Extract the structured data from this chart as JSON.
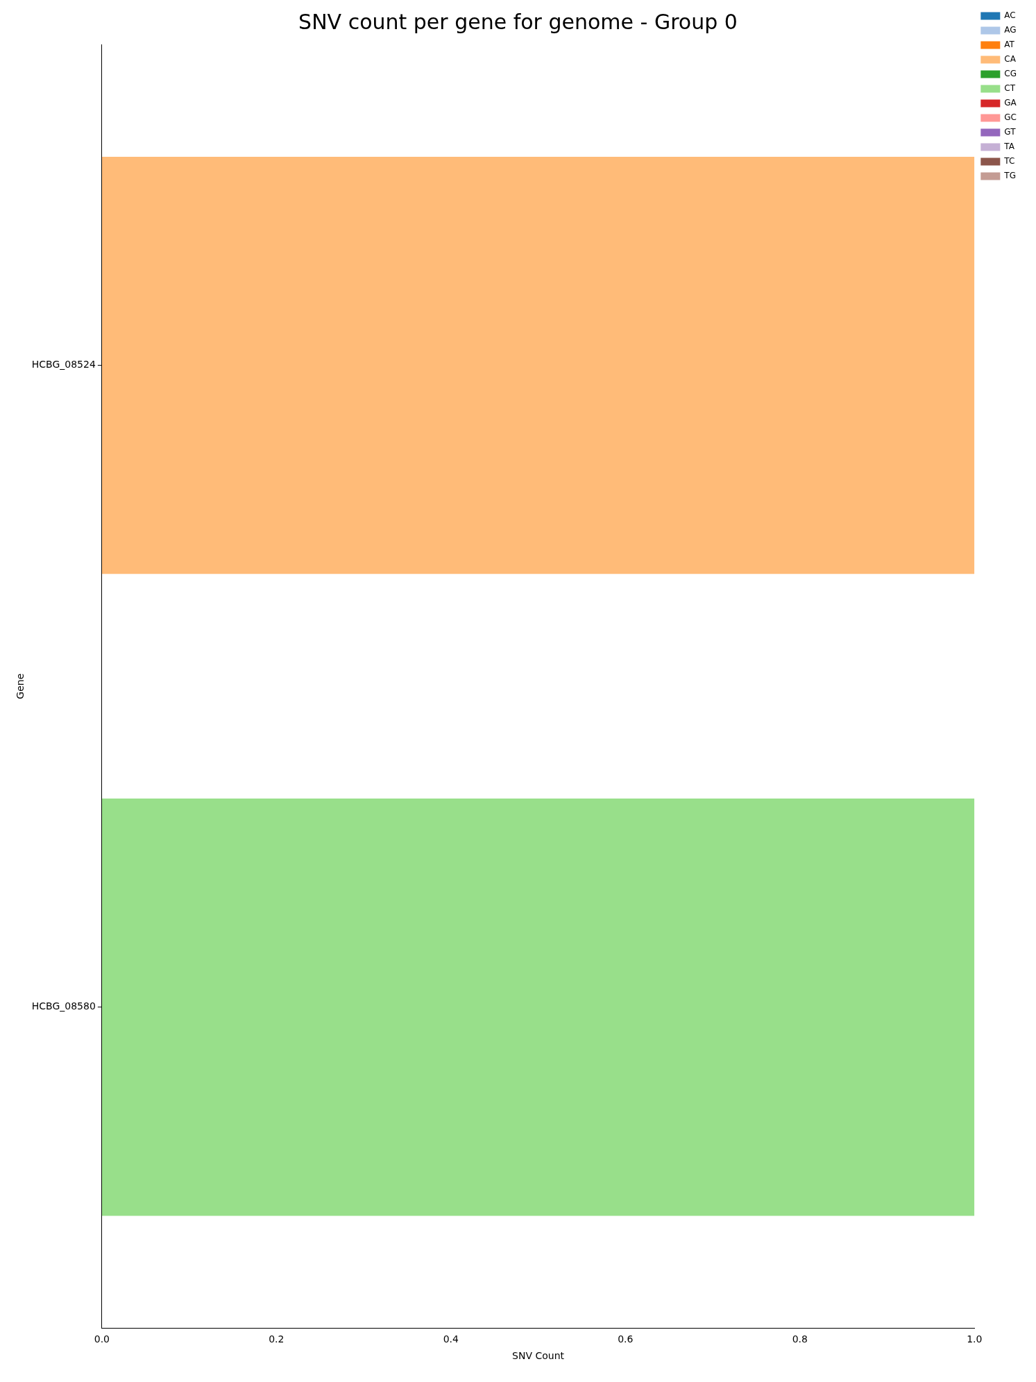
{
  "chart_data": {
    "type": "bar",
    "title": "SNV count per gene for genome - Group 0",
    "xlabel": "SNV Count",
    "ylabel": "Gene",
    "orientation": "horizontal",
    "stacked": true,
    "categories": [
      "HCBG_08524",
      "HCBG_08580"
    ],
    "series": [
      {
        "name": "AC",
        "color": "#1f77b4",
        "values": [
          0,
          0
        ]
      },
      {
        "name": "AG",
        "color": "#aec7e8",
        "values": [
          0,
          0
        ]
      },
      {
        "name": "AT",
        "color": "#ff7f0e",
        "values": [
          0,
          0
        ]
      },
      {
        "name": "CA",
        "color": "#ffbb78",
        "values": [
          1,
          0
        ]
      },
      {
        "name": "CG",
        "color": "#2ca02c",
        "values": [
          0,
          0
        ]
      },
      {
        "name": "CT",
        "color": "#98df8a",
        "values": [
          0,
          1
        ]
      },
      {
        "name": "GA",
        "color": "#d62728",
        "values": [
          0,
          0
        ]
      },
      {
        "name": "GC",
        "color": "#ff9896",
        "values": [
          0,
          0
        ]
      },
      {
        "name": "GT",
        "color": "#9467bd",
        "values": [
          0,
          0
        ]
      },
      {
        "name": "TA",
        "color": "#c5b0d5",
        "values": [
          0,
          0
        ]
      },
      {
        "name": "TC",
        "color": "#8c564b",
        "values": [
          0,
          0
        ]
      },
      {
        "name": "TG",
        "color": "#c49c94",
        "values": [
          0,
          0
        ]
      }
    ],
    "xlim": [
      0,
      1
    ],
    "xticks": [
      {
        "value": 0,
        "label": "0.0"
      },
      0.2,
      0.4,
      0.6,
      0.8,
      {
        "value": 1,
        "label": "1.0"
      }
    ],
    "grid": false,
    "legend": "top right"
  }
}
